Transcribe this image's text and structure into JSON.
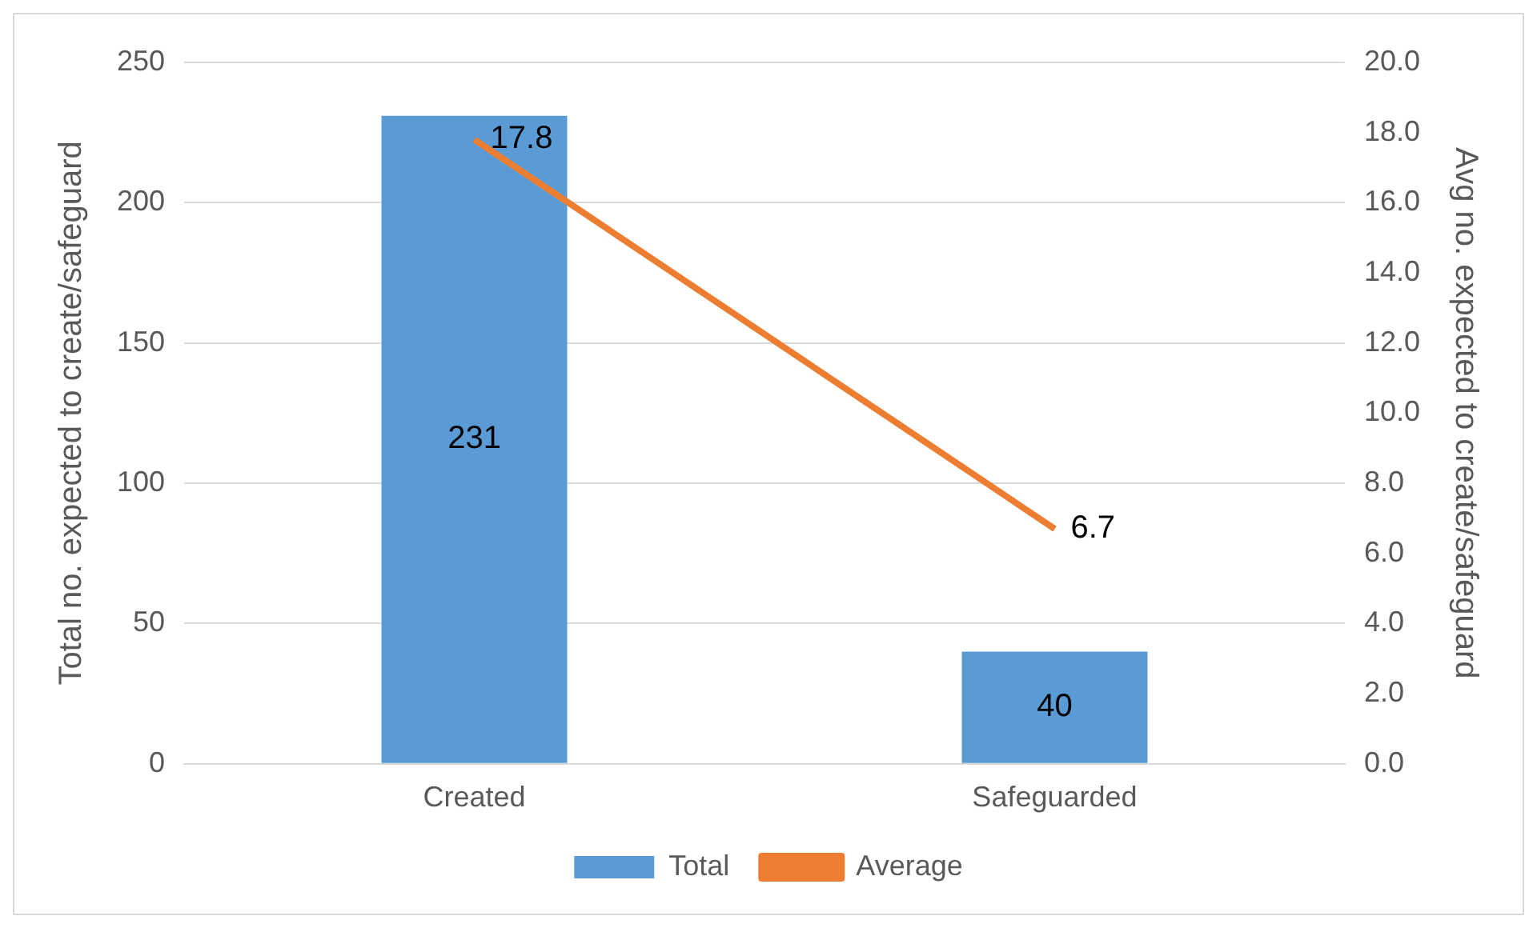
{
  "chart_data": {
    "type": "bar",
    "categories": [
      "Created",
      "Safeguarded"
    ],
    "ylabel": "Total no. expected to create/safeguard",
    "y2label": "Avg no. expected to create/safeguard",
    "series": [
      {
        "name": "Total",
        "color": "#5b9bd5",
        "values": [
          231,
          40
        ]
      },
      {
        "name": "Average",
        "type": "line",
        "axis": "y2",
        "color": "#ed7d31",
        "values": [
          17.8,
          6.7
        ]
      }
    ],
    "ylim": [
      0,
      250
    ],
    "yticks": [
      0,
      50,
      100,
      150,
      200,
      250
    ],
    "y2lim": [
      0,
      20
    ],
    "y2ticks": [
      {
        "value": 0,
        "label": "0.0"
      },
      {
        "value": 2,
        "label": "2.0"
      },
      {
        "value": 4,
        "label": "4.0"
      },
      {
        "value": 6,
        "label": "6.0"
      },
      {
        "value": 8,
        "label": "8.0"
      },
      {
        "value": 10,
        "label": "10.0"
      },
      {
        "value": 12,
        "label": "12.0"
      },
      {
        "value": 14,
        "label": "14.0"
      },
      {
        "value": 16,
        "label": "16.0"
      },
      {
        "value": 18,
        "label": "18.0"
      },
      {
        "value": 20,
        "label": "20.0"
      }
    ],
    "data_labels": true,
    "grid": "y",
    "legend": "bottom",
    "marker": "none"
  }
}
